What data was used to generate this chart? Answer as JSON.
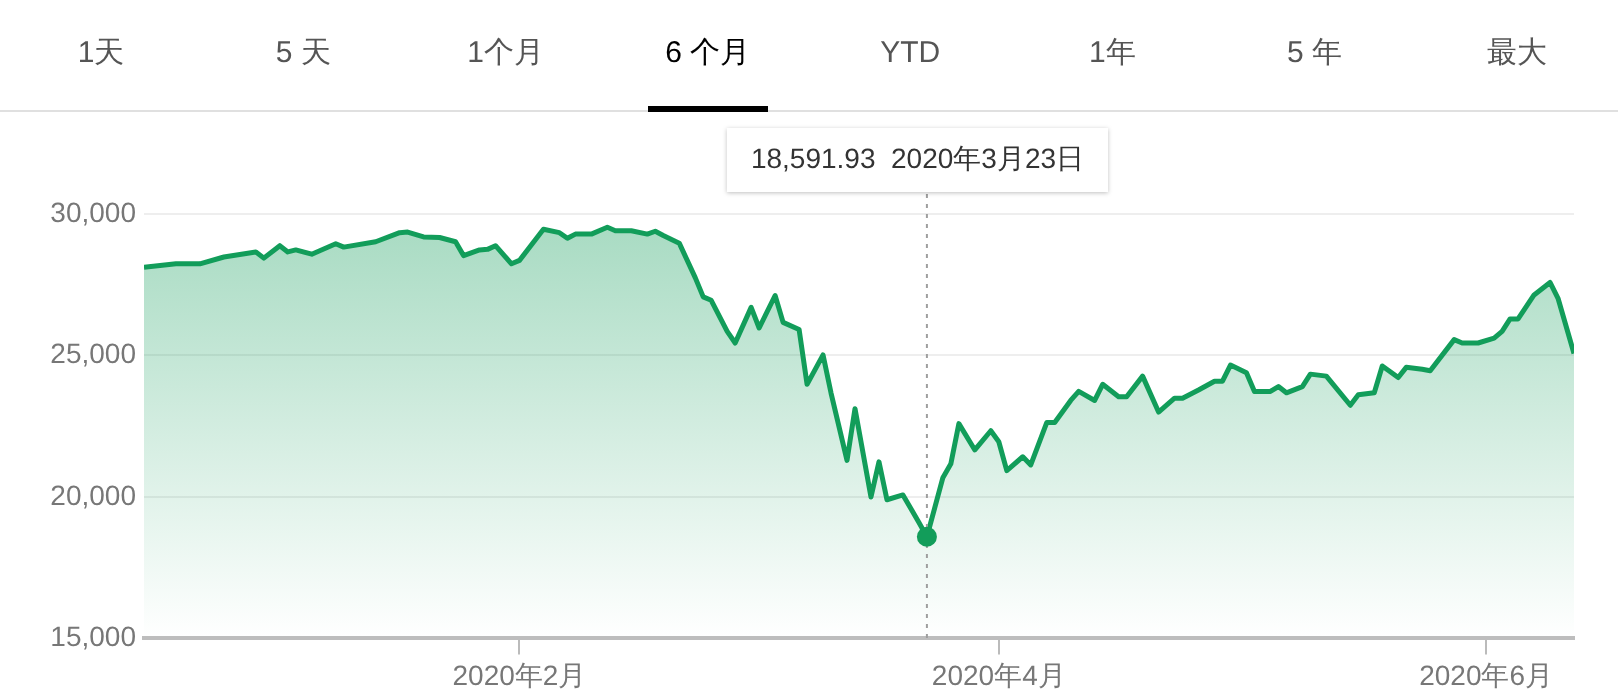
{
  "chart_data": {
    "type": "area",
    "annotations": [
      "1天",
      "5 天",
      "1个月",
      "6 个月",
      "YTD",
      "1年",
      "5 年",
      "最大"
    ],
    "x": [
      "2019-12-16",
      "2019-12-20",
      "2019-12-23",
      "2019-12-26",
      "2019-12-30",
      "2019-12-31",
      "2020-01-02",
      "2020-01-03",
      "2020-01-04",
      "2020-01-06",
      "2020-01-09",
      "2020-01-10",
      "2020-01-14",
      "2020-01-17",
      "2020-01-18",
      "2020-01-20",
      "2020-01-22",
      "2020-01-24",
      "2020-01-25",
      "2020-01-27",
      "2020-01-28",
      "2020-01-29",
      "2020-01-31",
      "2020-02-01",
      "2020-02-04",
      "2020-02-06",
      "2020-02-07",
      "2020-02-08",
      "2020-02-10",
      "2020-02-12",
      "2020-02-13",
      "2020-02-15",
      "2020-02-17",
      "2020-02-18",
      "2020-02-19",
      "2020-02-21",
      "2020-02-23",
      "2020-02-24",
      "2020-02-25",
      "2020-02-27",
      "2020-02-28",
      "2020-03-01",
      "2020-03-02",
      "2020-03-04",
      "2020-03-05",
      "2020-03-07",
      "2020-03-08",
      "2020-03-10",
      "2020-03-11",
      "2020-03-13",
      "2020-03-14",
      "2020-03-16",
      "2020-03-17",
      "2020-03-18",
      "2020-03-20",
      "2020-03-22",
      "2020-03-23",
      "2020-03-25",
      "2020-03-26",
      "2020-03-27",
      "2020-03-29",
      "2020-03-31",
      "2020-04-01",
      "2020-04-02",
      "2020-04-04",
      "2020-04-05",
      "2020-04-07",
      "2020-04-08",
      "2020-04-10",
      "2020-04-11",
      "2020-04-13",
      "2020-04-14",
      "2020-04-16",
      "2020-04-17",
      "2020-04-19",
      "2020-04-21",
      "2020-04-23",
      "2020-04-24",
      "2020-04-26",
      "2020-04-28",
      "2020-04-29",
      "2020-04-30",
      "2020-05-02",
      "2020-05-03",
      "2020-05-05",
      "2020-05-06",
      "2020-05-07",
      "2020-05-09",
      "2020-05-10",
      "2020-05-12",
      "2020-05-15",
      "2020-05-16",
      "2020-05-18",
      "2020-05-19",
      "2020-05-21",
      "2020-05-22",
      "2020-05-24",
      "2020-05-25",
      "2020-05-28",
      "2020-05-29",
      "2020-05-31",
      "2020-06-02",
      "2020-06-03",
      "2020-06-04",
      "2020-06-05",
      "2020-06-07",
      "2020-06-09",
      "2020-06-10",
      "2020-06-12"
    ],
    "series": [
      {
        "color": "#129d5a",
        "values": [
          28120,
          28240,
          28240,
          28480,
          28660,
          28440,
          28880,
          28660,
          28730,
          28580,
          28950,
          28830,
          29020,
          29340,
          29360,
          29190,
          29170,
          29020,
          28530,
          28730,
          28750,
          28880,
          28240,
          28360,
          29460,
          29340,
          29140,
          29290,
          29290,
          29530,
          29410,
          29410,
          29290,
          29390,
          29240,
          28970,
          27750,
          27070,
          26950,
          25850,
          25440,
          26700,
          25970,
          27120,
          26170,
          25920,
          23980,
          25020,
          23670,
          21290,
          23120,
          20000,
          21240,
          19900,
          20070,
          19100,
          18591.93,
          20680,
          21170,
          22590,
          21660,
          22340,
          21950,
          20930,
          21420,
          21130,
          22630,
          22630,
          23410,
          23730,
          23410,
          23980,
          23540,
          23540,
          24270,
          23000,
          23490,
          23490,
          23780,
          24090,
          24090,
          24660,
          24390,
          23730,
          23730,
          23900,
          23680,
          23900,
          24340,
          24270,
          23240,
          23610,
          23680,
          24630,
          24220,
          24580,
          24510,
          24460,
          25560,
          25440,
          25440,
          25610,
          25850,
          26290,
          26290,
          27140,
          27580,
          27020,
          25070
        ]
      }
    ],
    "xlim": [
      "2019-12-16",
      "2020-06-12"
    ],
    "xticks": [
      {
        "value": "2020-02-01",
        "label": "2020年2月"
      },
      {
        "value": "2020-04-01",
        "label": "2020年4月"
      },
      {
        "value": "2020-06-01",
        "label": "2020年6月"
      }
    ],
    "ylim": [
      15000,
      30000
    ],
    "yticks": [
      {
        "value": 15000,
        "label": "15,000"
      },
      {
        "value": 20000,
        "label": "20,000"
      },
      {
        "value": 25000,
        "label": "25,000"
      },
      {
        "value": 30000,
        "label": "30,000"
      }
    ],
    "ref_lines": [
      {
        "axis": "x",
        "value": "2020-03-23",
        "label": "18,591.93  2020年3月23日",
        "color": "#9e9e9e",
        "line_style": "dotted"
      }
    ],
    "grid": "y",
    "legend": false,
    "marker": "none",
    "line_style": "solid"
  }
}
